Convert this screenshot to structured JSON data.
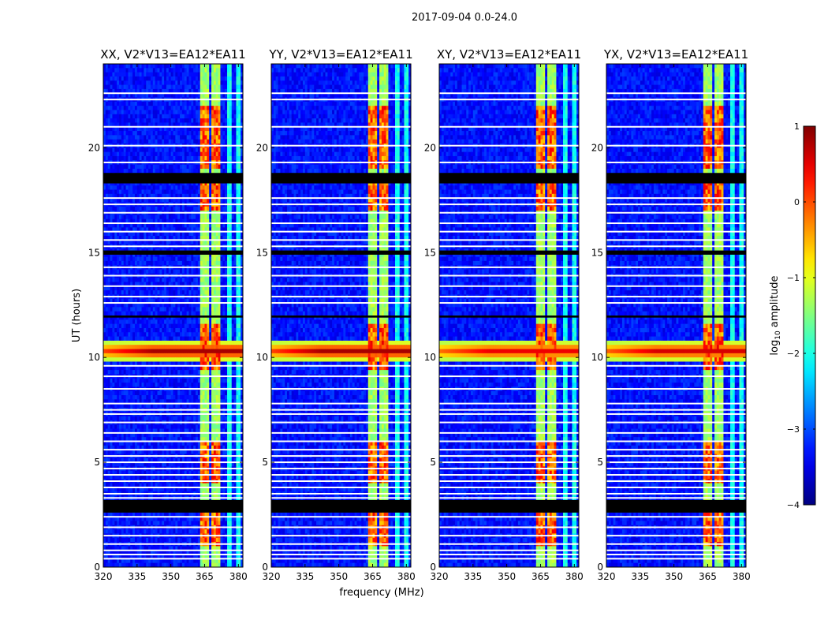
{
  "figure_title": "2017-09-04 0.0-24.0",
  "chart_data": {
    "type": "heatmap",
    "ylabel": "UT (hours)",
    "xlabel": "frequency (MHz)",
    "xlim": [
      320,
      382
    ],
    "ylim": [
      0,
      24
    ],
    "xticks": [
      320,
      335,
      350,
      365,
      380
    ],
    "yticks": [
      0,
      5,
      10,
      15,
      20
    ],
    "panels": [
      {
        "title": "XX, V2*V13=EA12*EA11",
        "flare_strength": 1.0
      },
      {
        "title": "YY, V2*V13=EA12*EA11",
        "flare_strength": 1.0
      },
      {
        "title": "XY, V2*V13=EA12*EA11",
        "flare_strength": 0.85
      },
      {
        "title": "YX, V2*V13=EA12*EA11",
        "flare_strength": 0.9
      }
    ],
    "colorbar": {
      "label": "log10 amplitude",
      "range": [
        -4,
        1
      ],
      "ticks": [
        1,
        0,
        -1,
        -2,
        -3,
        -4
      ],
      "colormap": "jet"
    },
    "rfi_bands_mhz": [
      [
        363,
        367
      ],
      [
        368,
        372
      ],
      [
        375,
        377
      ],
      [
        379,
        381
      ]
    ],
    "strong_band_hours": [
      [
        1,
        3
      ],
      [
        4,
        6
      ],
      [
        9.5,
        11.5
      ],
      [
        17,
        18.5
      ],
      [
        19,
        22
      ]
    ],
    "broadband_event_hours": [
      9.8,
      10.8
    ],
    "flagged_black_hours": [
      [
        2.6,
        3.2
      ],
      [
        18.3,
        18.8
      ],
      [
        14.9,
        15.1
      ],
      [
        11.9,
        12
      ]
    ],
    "flagged_white_hours": [
      22.6,
      22.3,
      21,
      20.1,
      19.3,
      18.6,
      17.6,
      17.3,
      16.9,
      16.4,
      16.0,
      15.6,
      15.3,
      14.3,
      13.9,
      13.4,
      12.9,
      12.6,
      9.6,
      9.1,
      8.5,
      7.8,
      7.5,
      7.3,
      6.9,
      6.4,
      6.0,
      5.6,
      5.3,
      5.0,
      4.7,
      4.4,
      4.1,
      3.8,
      3.5,
      3.3,
      2.4,
      1.9,
      1.5,
      1.1,
      0.8,
      0.6,
      0.4
    ]
  }
}
